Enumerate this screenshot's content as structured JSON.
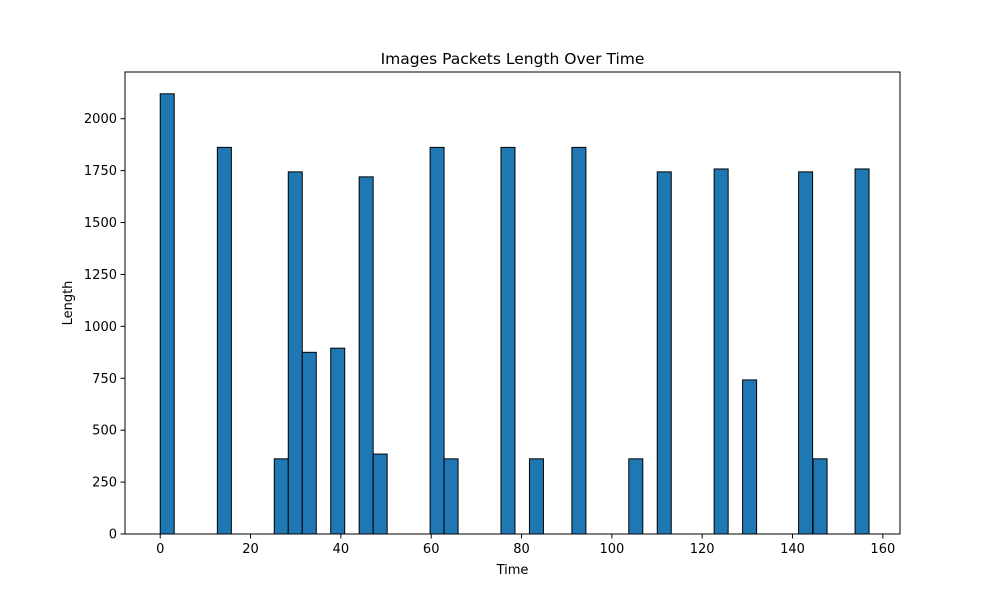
{
  "chart_data": {
    "type": "bar",
    "title": "Images Packets Length Over Time",
    "xlabel": "Time",
    "ylabel": "Length",
    "xlim": [
      -7.8,
      163.8
    ],
    "ylim": [
      0,
      2225
    ],
    "xticks": [
      0,
      20,
      40,
      60,
      80,
      100,
      120,
      140,
      160
    ],
    "yticks": [
      0,
      250,
      500,
      750,
      1000,
      1250,
      1500,
      1750,
      2000
    ],
    "bar_width": 3.1,
    "grid": false,
    "colors": {
      "bar_fill": "#1f77b4",
      "bar_edge": "#000000"
    },
    "bars": [
      {
        "x": 1.55,
        "value": 2120
      },
      {
        "x": 14.2,
        "value": 1862
      },
      {
        "x": 26.8,
        "value": 362
      },
      {
        "x": 29.9,
        "value": 1744
      },
      {
        "x": 33.0,
        "value": 875
      },
      {
        "x": 39.3,
        "value": 895
      },
      {
        "x": 45.6,
        "value": 1720
      },
      {
        "x": 48.7,
        "value": 385
      },
      {
        "x": 61.3,
        "value": 1862
      },
      {
        "x": 64.4,
        "value": 362
      },
      {
        "x": 77.0,
        "value": 1862
      },
      {
        "x": 83.3,
        "value": 362
      },
      {
        "x": 92.7,
        "value": 1862
      },
      {
        "x": 105.3,
        "value": 362
      },
      {
        "x": 111.6,
        "value": 1744
      },
      {
        "x": 124.2,
        "value": 1758
      },
      {
        "x": 130.5,
        "value": 742
      },
      {
        "x": 142.9,
        "value": 1744
      },
      {
        "x": 146.1,
        "value": 362
      },
      {
        "x": 155.4,
        "value": 1758
      }
    ]
  }
}
